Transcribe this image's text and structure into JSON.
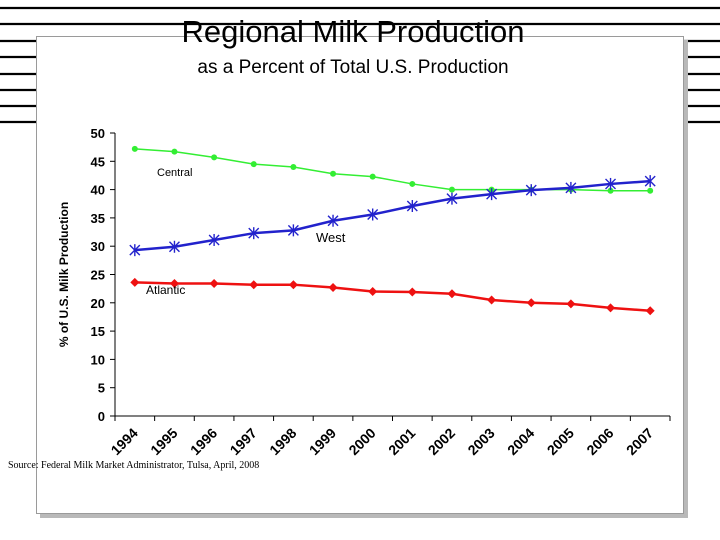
{
  "slide": {
    "title": "Regional Milk Production",
    "subtitle": "as a Percent of Total U.S. Production",
    "source": "Source:  Federal Milk Market Administrator, Tulsa, April, 2008"
  },
  "chart_data": {
    "type": "line",
    "title": "Regional Milk Production",
    "subtitle": "as a Percent of Total U.S. Production",
    "xlabel": "",
    "ylabel": "% of U.S. Milk Production",
    "ylim": [
      0,
      50
    ],
    "yticks": [
      0,
      5,
      10,
      15,
      20,
      25,
      30,
      35,
      40,
      45,
      50
    ],
    "categories": [
      "1994",
      "1995",
      "1996",
      "1997",
      "1998",
      "1999",
      "2000",
      "2001",
      "2002",
      "2003",
      "2004",
      "2005",
      "2006",
      "2007"
    ],
    "grid": false,
    "series": [
      {
        "name": "Central",
        "color": "#33ee33",
        "marker": "circle",
        "values": [
          47.2,
          46.7,
          45.7,
          44.5,
          44.0,
          42.8,
          42.3,
          41.0,
          40.0,
          40.0,
          40.0,
          40.0,
          39.8,
          39.8
        ]
      },
      {
        "name": "West",
        "color": "#2222cc",
        "marker": "asterisk",
        "values": [
          29.3,
          29.9,
          31.1,
          32.3,
          32.8,
          34.5,
          35.6,
          37.1,
          38.4,
          39.2,
          39.9,
          40.3,
          41.0,
          41.5
        ]
      },
      {
        "name": "Atlantic",
        "color": "#ee1111",
        "marker": "diamond",
        "values": [
          23.6,
          23.4,
          23.4,
          23.2,
          23.2,
          22.7,
          22.0,
          21.9,
          21.6,
          20.5,
          20.0,
          19.8,
          19.1,
          18.6
        ]
      }
    ]
  }
}
